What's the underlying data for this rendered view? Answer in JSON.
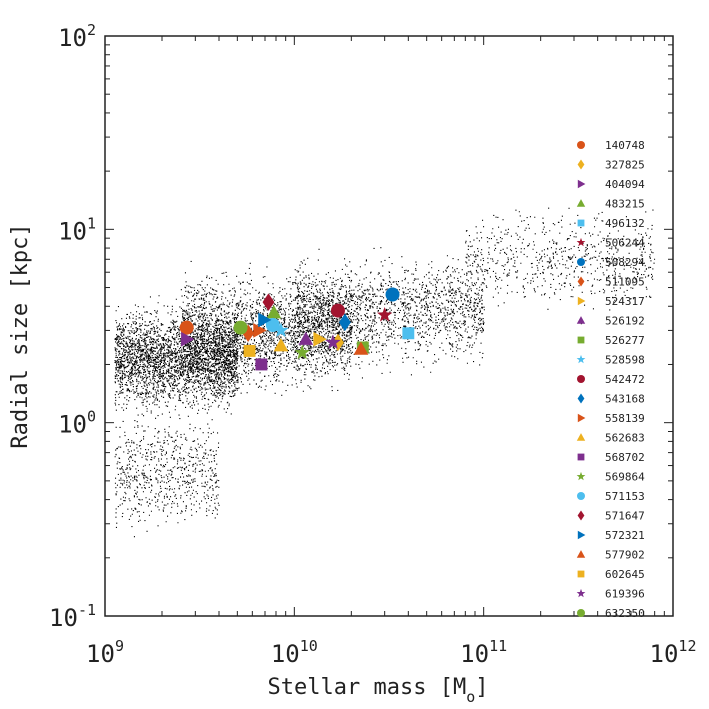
{
  "chart_data": {
    "type": "scatter",
    "title": "",
    "xlabel": {
      "main": "Stellar mass [M",
      "sub": "o",
      "close": "]"
    },
    "ylabel": "Radial size [kpc]",
    "xscale": "log",
    "yscale": "log",
    "xlim": [
      1000000000,
      1000000000000
    ],
    "ylim": [
      0.1,
      100
    ],
    "x_ticks": [
      {
        "value": 1000000000,
        "base": "10",
        "exp": "9"
      },
      {
        "value": 10000000000,
        "base": "10",
        "exp": "10"
      },
      {
        "value": 100000000000,
        "base": "10",
        "exp": "11"
      },
      {
        "value": 1000000000000,
        "base": "10",
        "exp": "12"
      }
    ],
    "y_ticks": [
      {
        "value": 0.1,
        "base": "10",
        "exp": "-1"
      },
      {
        "value": 1,
        "base": "10",
        "exp": "0"
      },
      {
        "value": 10,
        "base": "10",
        "exp": "1"
      },
      {
        "value": 100,
        "base": "10",
        "exp": "2"
      }
    ],
    "grid": false,
    "legend_position": "right",
    "background_population": {
      "marker": "dot",
      "color": "#000000",
      "note_visible": false,
      "regions": [
        {
          "logx_range": [
            9.05,
            9.7
          ],
          "logy_center": 0.33,
          "logy_spread": 0.22,
          "count": 3000
        },
        {
          "logx_range": [
            9.4,
            10.3
          ],
          "logy_center": 0.47,
          "logy_spread": 0.25,
          "count": 2600
        },
        {
          "logx_range": [
            10.0,
            11.0
          ],
          "logy_center": 0.58,
          "logy_spread": 0.24,
          "count": 1800
        },
        {
          "logx_range": [
            10.9,
            11.9
          ],
          "logy_center": 0.85,
          "logy_spread": 0.22,
          "count": 700
        },
        {
          "logx_range": [
            9.05,
            9.6
          ],
          "logy_center": -0.25,
          "logy_spread": 0.25,
          "count": 700
        }
      ]
    },
    "series": [
      {
        "name": "140748",
        "marker": "circle",
        "color": "#D95319",
        "x": 2700000000,
        "y": 3.1
      },
      {
        "name": "327825",
        "marker": "diamond",
        "color": "#EDB120",
        "x": 17000000000,
        "y": 2.6
      },
      {
        "name": "404094",
        "marker": "triangle-right",
        "color": "#7E2F8E",
        "x": 2700000000,
        "y": 2.7
      },
      {
        "name": "483215",
        "marker": "triangle-up",
        "color": "#77AC30",
        "x": 7800000000,
        "y": 3.7
      },
      {
        "name": "496132",
        "marker": "square",
        "color": "#4DBEEE",
        "x": 40000000000,
        "y": 2.9
      },
      {
        "name": "506244",
        "marker": "star",
        "color": "#A2142F",
        "x": 30000000000,
        "y": 3.6
      },
      {
        "name": "508294",
        "marker": "circle",
        "color": "#0072BD",
        "x": 33000000000,
        "y": 4.6
      },
      {
        "name": "511095",
        "marker": "diamond",
        "color": "#D95319",
        "x": 5700000000,
        "y": 2.9
      },
      {
        "name": "524317",
        "marker": "triangle-right",
        "color": "#EDB120",
        "x": 13500000000,
        "y": 2.7
      },
      {
        "name": "526192",
        "marker": "triangle-up",
        "color": "#7E2F8E",
        "x": 11500000000,
        "y": 2.7
      },
      {
        "name": "526277",
        "marker": "square",
        "color": "#77AC30",
        "x": 23000000000,
        "y": 2.45
      },
      {
        "name": "528598",
        "marker": "star",
        "color": "#4DBEEE",
        "x": 8500000000,
        "y": 3.0
      },
      {
        "name": "542472",
        "marker": "circle",
        "color": "#A2142F",
        "x": 17000000000,
        "y": 3.8
      },
      {
        "name": "543168",
        "marker": "diamond",
        "color": "#0072BD",
        "x": 18500000000,
        "y": 3.3
      },
      {
        "name": "558139",
        "marker": "triangle-right",
        "color": "#D95319",
        "x": 6500000000,
        "y": 3.0
      },
      {
        "name": "562683",
        "marker": "triangle-up",
        "color": "#EDB120",
        "x": 8500000000,
        "y": 2.5
      },
      {
        "name": "568702",
        "marker": "square",
        "color": "#7E2F8E",
        "x": 6700000000,
        "y": 2.0
      },
      {
        "name": "569864",
        "marker": "star",
        "color": "#77AC30",
        "x": 11000000000,
        "y": 2.3
      },
      {
        "name": "571153",
        "marker": "circle",
        "color": "#4DBEEE",
        "x": 7700000000,
        "y": 3.2
      },
      {
        "name": "571647",
        "marker": "diamond",
        "color": "#A2142F",
        "x": 7300000000,
        "y": 4.2
      },
      {
        "name": "572321",
        "marker": "triangle-right",
        "color": "#0072BD",
        "x": 6900000000,
        "y": 3.4
      },
      {
        "name": "577902",
        "marker": "triangle-up",
        "color": "#D95319",
        "x": 22500000000,
        "y": 2.4
      },
      {
        "name": "602645",
        "marker": "square",
        "color": "#EDB120",
        "x": 5800000000,
        "y": 2.35
      },
      {
        "name": "619396",
        "marker": "star",
        "color": "#7E2F8E",
        "x": 16000000000,
        "y": 2.6
      },
      {
        "name": "632350",
        "marker": "circle",
        "color": "#77AC30",
        "x": 5200000000,
        "y": 3.1
      }
    ]
  }
}
